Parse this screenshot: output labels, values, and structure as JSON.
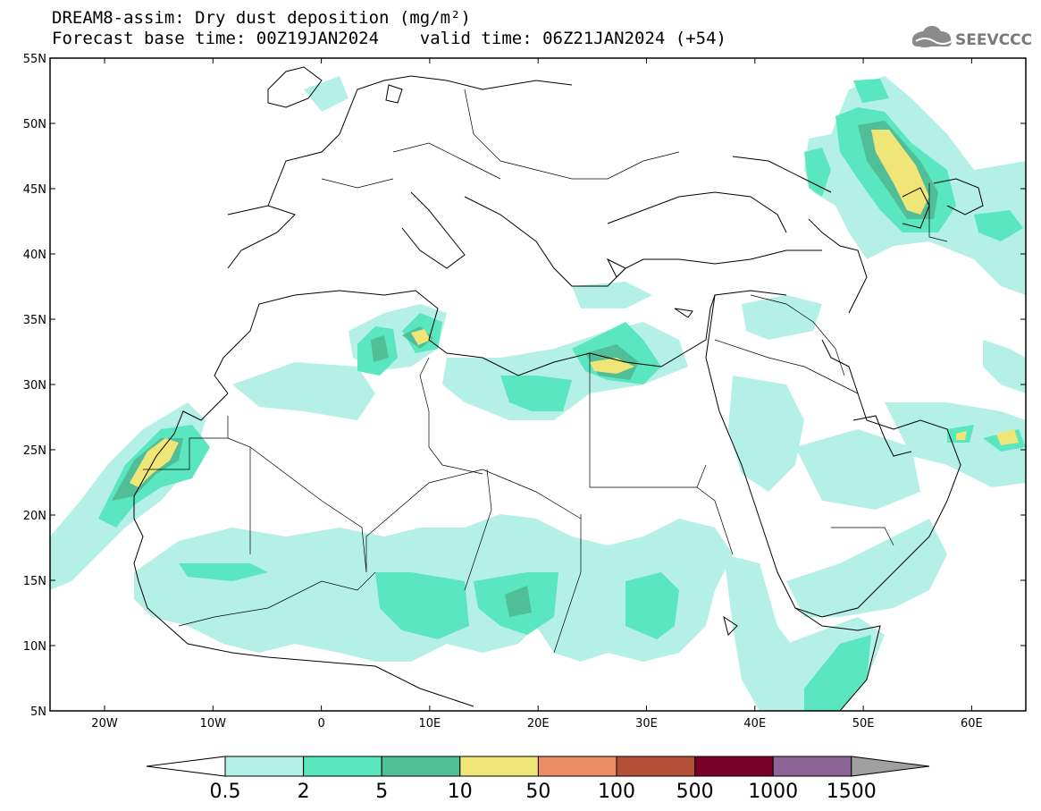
{
  "header": {
    "title": "DREAM8-assim: Dry dust deposition (mg/m²)",
    "subtitle": "Forecast base time: 00Z19JAN2024    valid time: 06Z21JAN2024 (+54)"
  },
  "logo": {
    "text": "SEEVCCC",
    "icon": "cloud-icon"
  },
  "map": {
    "lat_labels": [
      "55N",
      "50N",
      "45N",
      "40N",
      "35N",
      "30N",
      "25N",
      "20N",
      "15N",
      "10N",
      "5N"
    ],
    "lon_labels": [
      "20W",
      "10W",
      "0",
      "10E",
      "20E",
      "30E",
      "40E",
      "50E",
      "60E"
    ]
  },
  "colorbar": {
    "labels": [
      "0.5",
      "2",
      "5",
      "10",
      "50",
      "100",
      "500",
      "1000",
      "1500"
    ],
    "colors": [
      "#b4f0e6",
      "#5ae6be",
      "#50be96",
      "#f0e678",
      "#eb8c64",
      "#b45037",
      "#780028",
      "#8c6496",
      "#a0a0a0"
    ],
    "under_color": "#ffffff"
  },
  "legend_colors": {
    "c1": "#b4f0e6",
    "c2": "#5ae6be",
    "c3": "#50be96",
    "c4": "#f0e678"
  }
}
